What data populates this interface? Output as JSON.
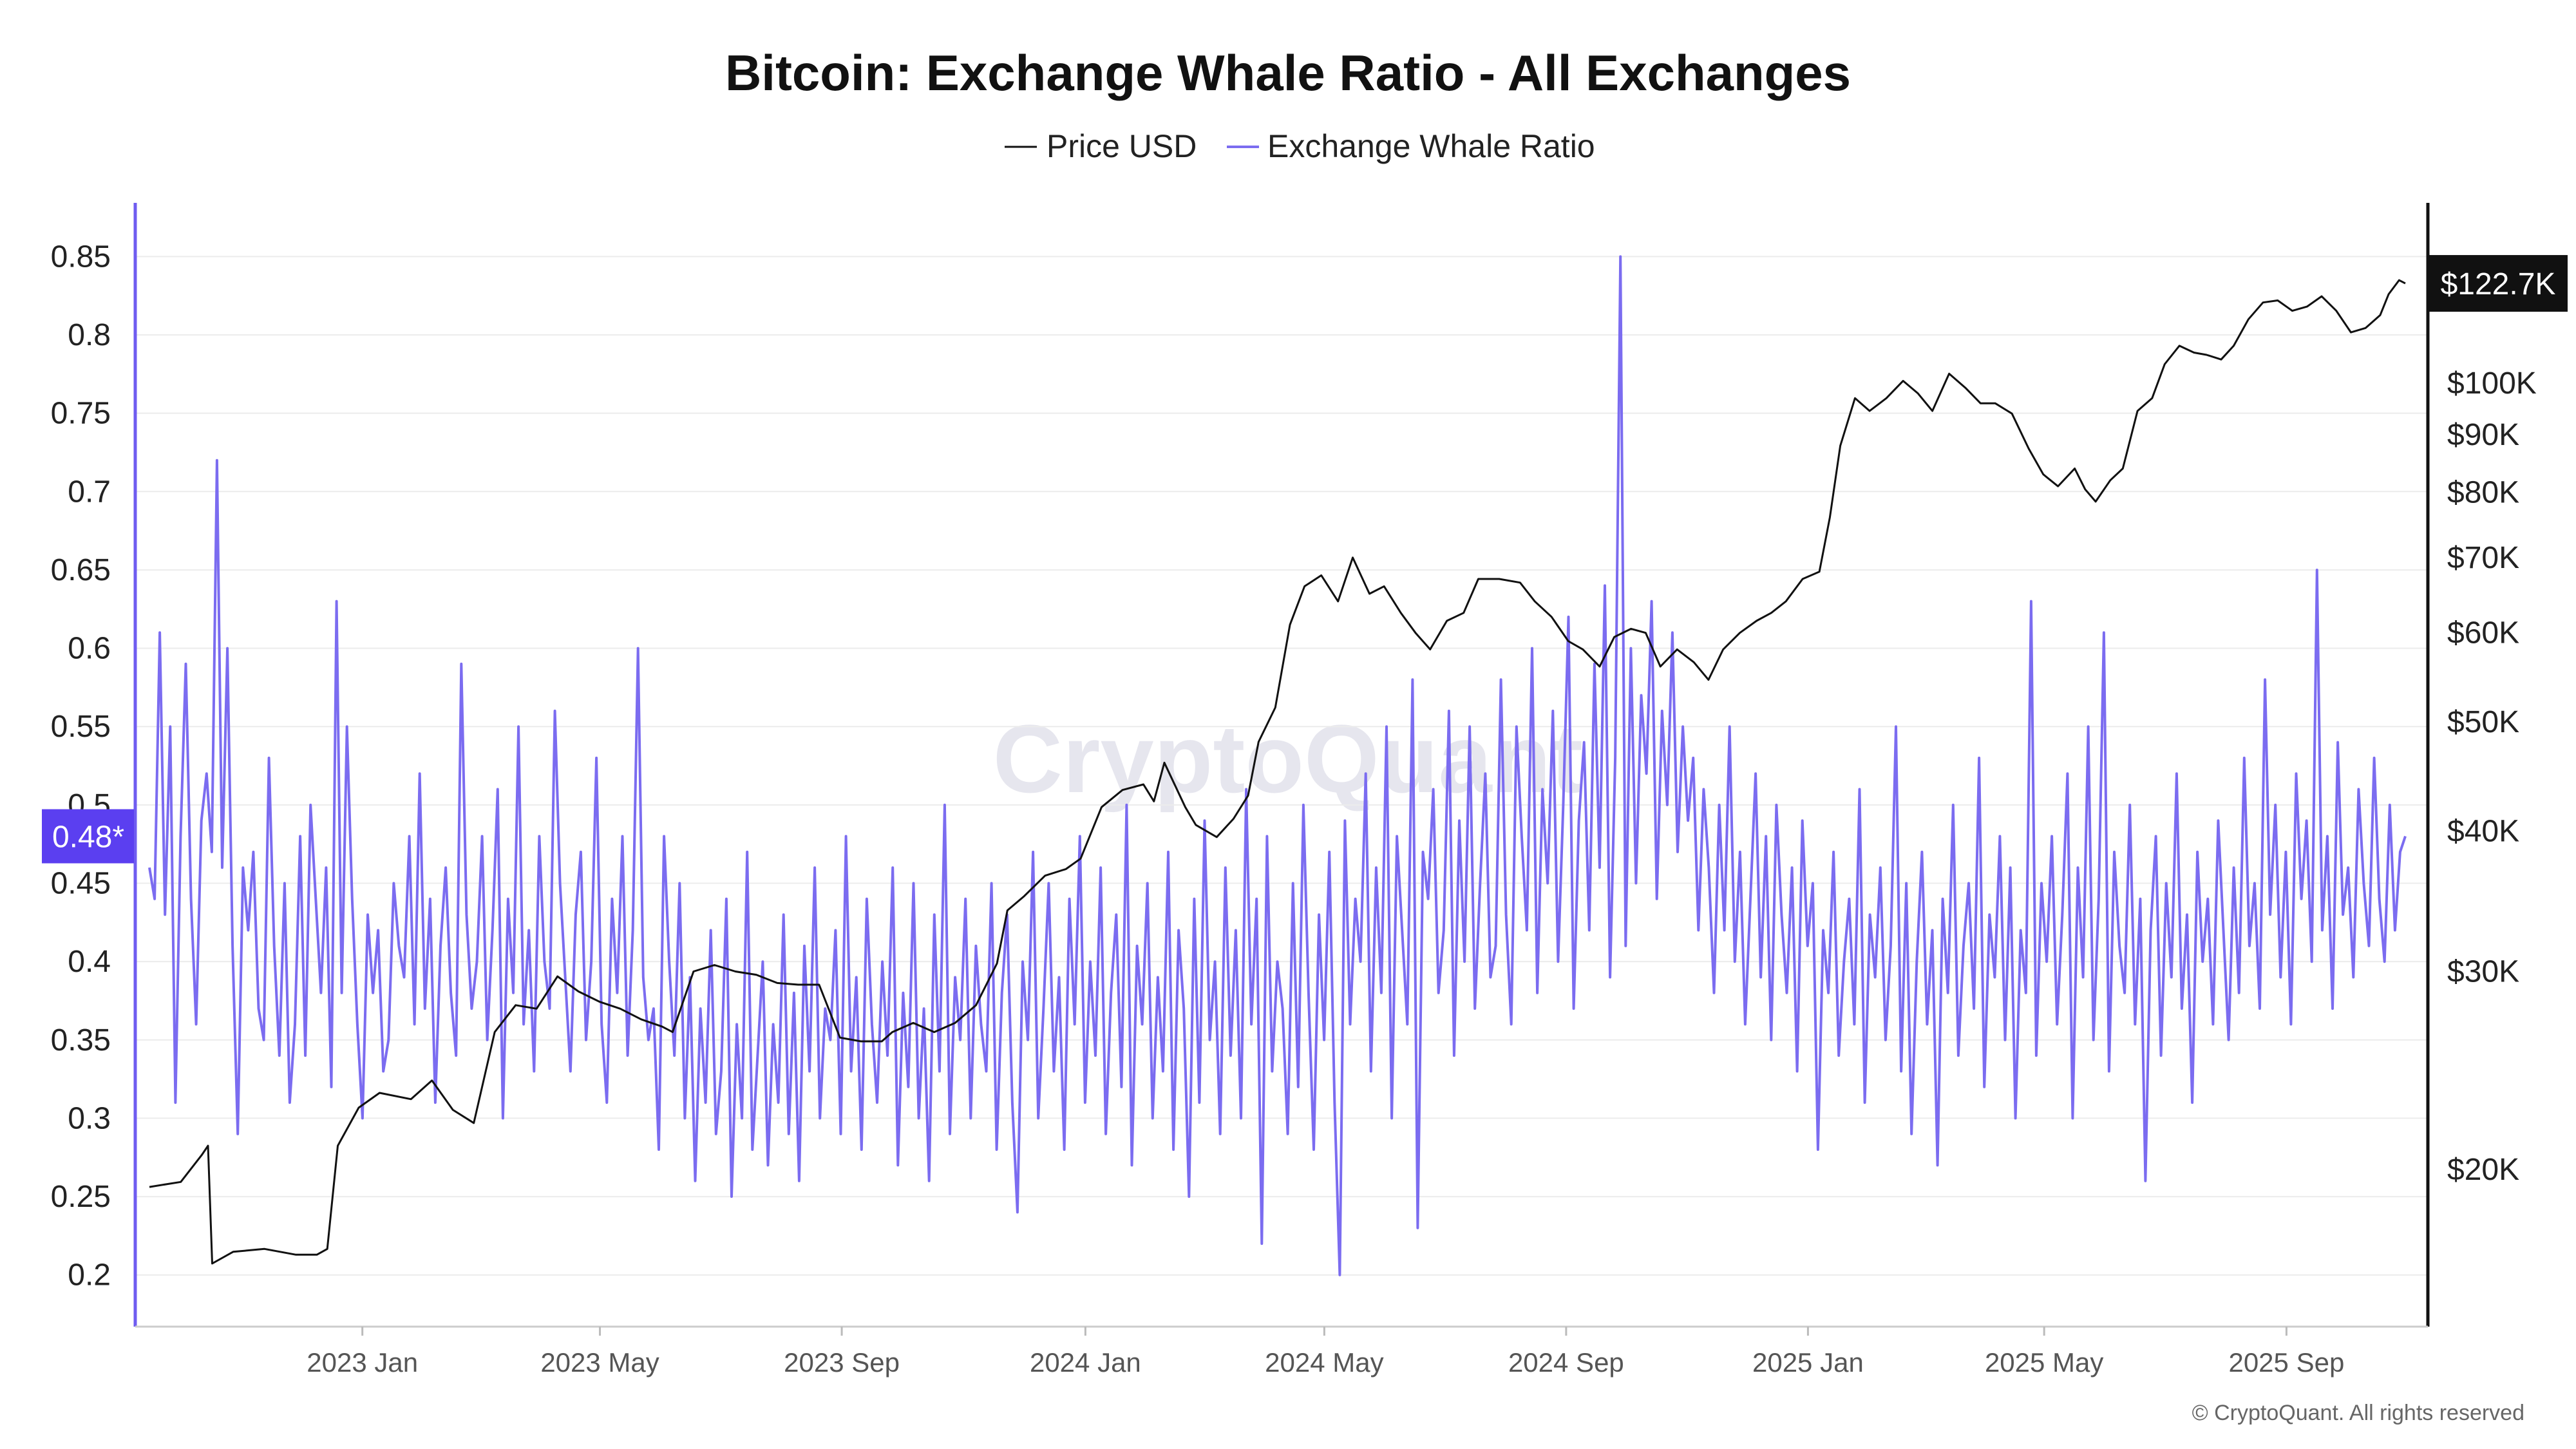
{
  "chart_data": {
    "type": "line",
    "title": "Bitcoin: Exchange Whale Ratio - All Exchanges",
    "legend": [
      {
        "name": "Price USD",
        "color": "#111111"
      },
      {
        "name": "Exchange Whale Ratio",
        "color": "#7b6cf0"
      }
    ],
    "legend_position": "top-center",
    "x_ticks": [
      "2023 Jan",
      "2023 May",
      "2023 Sep",
      "2024 Jan",
      "2024 May",
      "2024 Sep",
      "2025 Jan",
      "2025 May",
      "2025 Sep"
    ],
    "x_range": [
      "2022 Oct 15",
      "2025 Oct 15"
    ],
    "left_axis": {
      "ticks": [
        "0.2",
        "0.25",
        "0.3",
        "0.35",
        "0.4",
        "0.45",
        "0.5",
        "0.55",
        "0.6",
        "0.65",
        "0.7",
        "0.75",
        "0.8",
        "0.85"
      ],
      "tick_values": [
        0.2,
        0.25,
        0.3,
        0.35,
        0.4,
        0.45,
        0.5,
        0.55,
        0.6,
        0.65,
        0.7,
        0.75,
        0.8,
        0.85
      ],
      "ylim": [
        0.167,
        0.874
      ],
      "current_label": "0.48*",
      "current_value": 0.48
    },
    "right_axis": {
      "scale": "log",
      "ticks": [
        "$20K",
        "$30K",
        "$40K",
        "$50K",
        "$60K",
        "$70K",
        "$80K",
        "$90K",
        "$100K"
      ],
      "tick_values": [
        20000,
        30000,
        40000,
        50000,
        60000,
        70000,
        80000,
        90000,
        100000
      ],
      "ylim": [
        14500,
        140000
      ],
      "current_label": "$122.7K",
      "current_value": 122700
    },
    "grid": true,
    "series": [
      {
        "name": "Price USD",
        "axis": "right",
        "color": "#111111",
        "points": [
          [
            0.0,
            19300
          ],
          [
            0.015,
            19500
          ],
          [
            0.025,
            20600
          ],
          [
            0.028,
            21000
          ],
          [
            0.03,
            16500
          ],
          [
            0.04,
            16900
          ],
          [
            0.055,
            17000
          ],
          [
            0.07,
            16800
          ],
          [
            0.08,
            16800
          ],
          [
            0.085,
            17000
          ],
          [
            0.09,
            21000
          ],
          [
            0.1,
            22700
          ],
          [
            0.11,
            23400
          ],
          [
            0.125,
            23100
          ],
          [
            0.135,
            24000
          ],
          [
            0.145,
            22600
          ],
          [
            0.155,
            22000
          ],
          [
            0.165,
            26500
          ],
          [
            0.175,
            28000
          ],
          [
            0.185,
            27800
          ],
          [
            0.195,
            29700
          ],
          [
            0.205,
            28800
          ],
          [
            0.215,
            28200
          ],
          [
            0.225,
            27800
          ],
          [
            0.235,
            27200
          ],
          [
            0.245,
            26800
          ],
          [
            0.25,
            26500
          ],
          [
            0.26,
            30000
          ],
          [
            0.27,
            30400
          ],
          [
            0.28,
            30000
          ],
          [
            0.29,
            29800
          ],
          [
            0.3,
            29300
          ],
          [
            0.31,
            29200
          ],
          [
            0.32,
            29200
          ],
          [
            0.33,
            26200
          ],
          [
            0.34,
            26000
          ],
          [
            0.35,
            26000
          ],
          [
            0.355,
            26500
          ],
          [
            0.365,
            27000
          ],
          [
            0.375,
            26500
          ],
          [
            0.385,
            27000
          ],
          [
            0.395,
            28000
          ],
          [
            0.405,
            30500
          ],
          [
            0.41,
            34000
          ],
          [
            0.418,
            35000
          ],
          [
            0.428,
            36500
          ],
          [
            0.438,
            37000
          ],
          [
            0.445,
            37800
          ],
          [
            0.455,
            42000
          ],
          [
            0.465,
            43500
          ],
          [
            0.475,
            44000
          ],
          [
            0.48,
            42500
          ],
          [
            0.485,
            46000
          ],
          [
            0.495,
            42000
          ],
          [
            0.5,
            40500
          ],
          [
            0.51,
            39500
          ],
          [
            0.518,
            41000
          ],
          [
            0.525,
            43000
          ],
          [
            0.53,
            48000
          ],
          [
            0.538,
            51500
          ],
          [
            0.545,
            61000
          ],
          [
            0.552,
            66000
          ],
          [
            0.56,
            67500
          ],
          [
            0.568,
            64000
          ],
          [
            0.575,
            70000
          ],
          [
            0.583,
            65000
          ],
          [
            0.59,
            66000
          ],
          [
            0.598,
            62500
          ],
          [
            0.605,
            60000
          ],
          [
            0.612,
            58000
          ],
          [
            0.62,
            61500
          ],
          [
            0.628,
            62500
          ],
          [
            0.635,
            67000
          ],
          [
            0.645,
            67000
          ],
          [
            0.655,
            66500
          ],
          [
            0.662,
            64000
          ],
          [
            0.67,
            62000
          ],
          [
            0.678,
            59000
          ],
          [
            0.685,
            58000
          ],
          [
            0.693,
            56000
          ],
          [
            0.7,
            59500
          ],
          [
            0.708,
            60500
          ],
          [
            0.715,
            60000
          ],
          [
            0.722,
            56000
          ],
          [
            0.73,
            58000
          ],
          [
            0.738,
            56500
          ],
          [
            0.745,
            54500
          ],
          [
            0.752,
            58000
          ],
          [
            0.76,
            60000
          ],
          [
            0.768,
            61500
          ],
          [
            0.775,
            62500
          ],
          [
            0.782,
            64000
          ],
          [
            0.79,
            67000
          ],
          [
            0.798,
            68000
          ],
          [
            0.803,
            76000
          ],
          [
            0.808,
            88000
          ],
          [
            0.815,
            97000
          ],
          [
            0.822,
            94500
          ],
          [
            0.83,
            97000
          ],
          [
            0.838,
            100500
          ],
          [
            0.845,
            98000
          ],
          [
            0.852,
            94500
          ],
          [
            0.86,
            102000
          ],
          [
            0.868,
            99000
          ],
          [
            0.875,
            96000
          ],
          [
            0.882,
            96000
          ],
          [
            0.89,
            94000
          ],
          [
            0.898,
            87500
          ],
          [
            0.905,
            83000
          ],
          [
            0.912,
            81000
          ],
          [
            0.92,
            84000
          ],
          [
            0.925,
            80500
          ],
          [
            0.93,
            78500
          ],
          [
            0.937,
            82000
          ],
          [
            0.943,
            84000
          ],
          [
            0.95,
            94500
          ],
          [
            0.957,
            97000
          ],
          [
            0.963,
            104000
          ],
          [
            0.97,
            108000
          ],
          [
            0.977,
            106500
          ],
          [
            0.983,
            106000
          ],
          [
            0.99,
            105000
          ],
          [
            0.996,
            108000
          ],
          [
            1.003,
            114000
          ],
          [
            1.01,
            118000
          ],
          [
            1.017,
            118500
          ],
          [
            1.024,
            116000
          ],
          [
            1.031,
            117000
          ],
          [
            1.038,
            119500
          ],
          [
            1.045,
            116000
          ],
          [
            1.052,
            111000
          ],
          [
            1.059,
            112000
          ],
          [
            1.066,
            115000
          ],
          [
            1.07,
            120000
          ],
          [
            1.075,
            123500
          ],
          [
            1.078,
            122700
          ]
        ]
      },
      {
        "name": "Exchange Whale Ratio",
        "axis": "left",
        "color": "#7b6cf0",
        "values": [
          0.46,
          0.44,
          0.61,
          0.43,
          0.55,
          0.31,
          0.48,
          0.59,
          0.44,
          0.36,
          0.49,
          0.52,
          0.47,
          0.72,
          0.46,
          0.6,
          0.41,
          0.29,
          0.46,
          0.42,
          0.47,
          0.37,
          0.35,
          0.53,
          0.41,
          0.34,
          0.45,
          0.31,
          0.36,
          0.48,
          0.34,
          0.5,
          0.44,
          0.38,
          0.46,
          0.32,
          0.63,
          0.38,
          0.55,
          0.44,
          0.36,
          0.3,
          0.43,
          0.38,
          0.42,
          0.33,
          0.35,
          0.45,
          0.41,
          0.39,
          0.48,
          0.36,
          0.52,
          0.37,
          0.44,
          0.31,
          0.41,
          0.46,
          0.38,
          0.34,
          0.59,
          0.43,
          0.37,
          0.4,
          0.48,
          0.35,
          0.42,
          0.51,
          0.3,
          0.44,
          0.38,
          0.55,
          0.36,
          0.42,
          0.33,
          0.48,
          0.4,
          0.37,
          0.56,
          0.45,
          0.39,
          0.33,
          0.43,
          0.47,
          0.35,
          0.4,
          0.53,
          0.36,
          0.31,
          0.44,
          0.38,
          0.48,
          0.34,
          0.42,
          0.6,
          0.39,
          0.35,
          0.37,
          0.28,
          0.48,
          0.4,
          0.34,
          0.45,
          0.3,
          0.39,
          0.26,
          0.37,
          0.31,
          0.42,
          0.29,
          0.33,
          0.44,
          0.25,
          0.36,
          0.3,
          0.47,
          0.28,
          0.34,
          0.4,
          0.27,
          0.36,
          0.31,
          0.43,
          0.29,
          0.38,
          0.26,
          0.41,
          0.33,
          0.46,
          0.3,
          0.37,
          0.35,
          0.42,
          0.29,
          0.48,
          0.33,
          0.39,
          0.28,
          0.44,
          0.36,
          0.31,
          0.4,
          0.34,
          0.46,
          0.27,
          0.38,
          0.32,
          0.45,
          0.3,
          0.37,
          0.26,
          0.43,
          0.33,
          0.5,
          0.29,
          0.39,
          0.35,
          0.44,
          0.3,
          0.41,
          0.36,
          0.33,
          0.45,
          0.28,
          0.38,
          0.43,
          0.31,
          0.24,
          0.4,
          0.35,
          0.47,
          0.3,
          0.37,
          0.45,
          0.33,
          0.39,
          0.28,
          0.44,
          0.36,
          0.48,
          0.31,
          0.4,
          0.34,
          0.46,
          0.29,
          0.38,
          0.43,
          0.32,
          0.5,
          0.27,
          0.41,
          0.36,
          0.45,
          0.3,
          0.39,
          0.33,
          0.47,
          0.28,
          0.42,
          0.37,
          0.25,
          0.44,
          0.31,
          0.49,
          0.35,
          0.4,
          0.29,
          0.46,
          0.34,
          0.42,
          0.3,
          0.51,
          0.36,
          0.44,
          0.22,
          0.48,
          0.33,
          0.4,
          0.37,
          0.29,
          0.45,
          0.32,
          0.5,
          0.38,
          0.28,
          0.43,
          0.35,
          0.47,
          0.31,
          0.2,
          0.49,
          0.36,
          0.44,
          0.4,
          0.52,
          0.33,
          0.46,
          0.38,
          0.55,
          0.3,
          0.48,
          0.42,
          0.36,
          0.58,
          0.23,
          0.47,
          0.44,
          0.51,
          0.38,
          0.42,
          0.56,
          0.34,
          0.49,
          0.4,
          0.55,
          0.37,
          0.45,
          0.52,
          0.39,
          0.41,
          0.58,
          0.43,
          0.36,
          0.55,
          0.48,
          0.42,
          0.6,
          0.38,
          0.51,
          0.45,
          0.56,
          0.4,
          0.5,
          0.62,
          0.37,
          0.49,
          0.54,
          0.42,
          0.59,
          0.46,
          0.64,
          0.39,
          0.53,
          0.85,
          0.41,
          0.6,
          0.45,
          0.57,
          0.52,
          0.63,
          0.44,
          0.56,
          0.5,
          0.61,
          0.47,
          0.55,
          0.49,
          0.53,
          0.42,
          0.51,
          0.46,
          0.38,
          0.5,
          0.42,
          0.55,
          0.4,
          0.47,
          0.36,
          0.44,
          0.52,
          0.39,
          0.48,
          0.35,
          0.5,
          0.43,
          0.38,
          0.46,
          0.33,
          0.49,
          0.41,
          0.45,
          0.28,
          0.42,
          0.38,
          0.47,
          0.34,
          0.4,
          0.44,
          0.36,
          0.51,
          0.31,
          0.43,
          0.39,
          0.46,
          0.35,
          0.41,
          0.55,
          0.33,
          0.45,
          0.29,
          0.4,
          0.47,
          0.36,
          0.42,
          0.27,
          0.44,
          0.38,
          0.5,
          0.34,
          0.41,
          0.45,
          0.37,
          0.53,
          0.32,
          0.43,
          0.39,
          0.48,
          0.35,
          0.46,
          0.3,
          0.42,
          0.38,
          0.63,
          0.34,
          0.45,
          0.4,
          0.48,
          0.36,
          0.43,
          0.52,
          0.3,
          0.46,
          0.39,
          0.55,
          0.35,
          0.44,
          0.61,
          0.33,
          0.47,
          0.41,
          0.38,
          0.5,
          0.36,
          0.44,
          0.26,
          0.42,
          0.48,
          0.34,
          0.45,
          0.39,
          0.52,
          0.37,
          0.43,
          0.31,
          0.47,
          0.4,
          0.44,
          0.36,
          0.49,
          0.42,
          0.35,
          0.46,
          0.38,
          0.53,
          0.41,
          0.45,
          0.37,
          0.58,
          0.43,
          0.5,
          0.39,
          0.47,
          0.36,
          0.52,
          0.44,
          0.49,
          0.4,
          0.65,
          0.42,
          0.48,
          0.37,
          0.54,
          0.43,
          0.46,
          0.39,
          0.51,
          0.45,
          0.41,
          0.53,
          0.44,
          0.4,
          0.5,
          0.42,
          0.47,
          0.48
        ]
      }
    ]
  },
  "footer": {
    "watermark": "CryptoQuant",
    "copyright": "© CryptoQuant. All rights reserved"
  }
}
